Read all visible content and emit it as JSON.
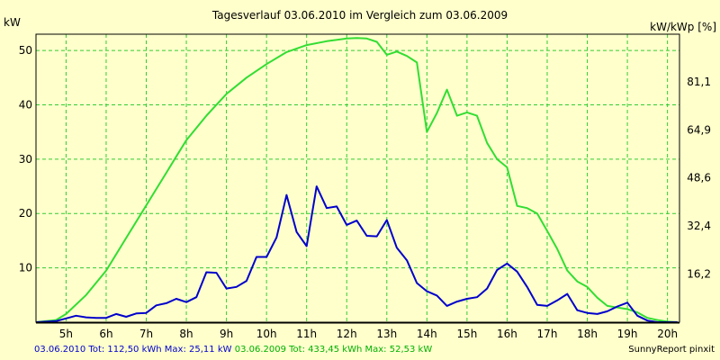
{
  "chart_data": {
    "type": "line",
    "title": "Tagesverlauf 03.06.2010 im Vergleich zum 03.06.2009",
    "ylabel_left": "kW",
    "ylabel_right": "kW/kWp [%]",
    "xlim": [
      4.25,
      20.3
    ],
    "ylim": [
      0,
      53
    ],
    "grid": true,
    "x_ticks": [
      5,
      6,
      7,
      8,
      9,
      10,
      11,
      12,
      13,
      14,
      15,
      16,
      17,
      18,
      19,
      20
    ],
    "x_tick_labels": [
      "5h",
      "6h",
      "7h",
      "8h",
      "9h",
      "10h",
      "11h",
      "12h",
      "13h",
      "14h",
      "15h",
      "16h",
      "17h",
      "18h",
      "19h",
      "20h"
    ],
    "y_ticks_left": [
      10,
      20,
      30,
      40,
      50
    ],
    "y_tick_labels_left": [
      "10",
      "20",
      "30",
      "40",
      "50"
    ],
    "y_ticks_right": [
      8.85,
      17.7,
      26.55,
      35.4,
      44.25
    ],
    "y_tick_labels_right": [
      "16,2",
      "32,4",
      "48,6",
      "64,9",
      "81,1"
    ],
    "series": [
      {
        "name": "03.06.2010",
        "color": "#0000CC",
        "x": [
          4.25,
          4.75,
          5.0,
          5.25,
          5.5,
          5.75,
          6.0,
          6.25,
          6.5,
          6.75,
          7.0,
          7.25,
          7.5,
          7.75,
          8.0,
          8.25,
          8.5,
          8.75,
          9.0,
          9.25,
          9.5,
          9.75,
          10.0,
          10.25,
          10.5,
          10.75,
          11.0,
          11.25,
          11.5,
          11.75,
          12.0,
          12.25,
          12.5,
          12.75,
          13.0,
          13.25,
          13.5,
          13.75,
          14.0,
          14.25,
          14.5,
          14.75,
          15.0,
          15.25,
          15.5,
          15.75,
          16.0,
          16.25,
          16.5,
          16.75,
          17.0,
          17.25,
          17.5,
          17.75,
          18.0,
          18.25,
          18.5,
          18.75,
          19.0,
          19.25,
          19.5,
          19.75,
          20.0,
          20.25
        ],
        "y": [
          0.0,
          0.2,
          0.7,
          1.2,
          0.9,
          0.8,
          0.8,
          1.5,
          1.0,
          1.6,
          1.7,
          3.1,
          3.5,
          4.3,
          3.7,
          4.6,
          9.2,
          9.1,
          6.2,
          6.5,
          7.6,
          12.0,
          12.0,
          15.6,
          23.4,
          16.6,
          14.0,
          25.0,
          21.0,
          21.3,
          17.9,
          18.7,
          15.9,
          15.8,
          18.8,
          13.7,
          11.4,
          7.2,
          5.7,
          4.9,
          3.0,
          3.8,
          4.3,
          4.6,
          6.2,
          9.6,
          10.8,
          9.3,
          6.5,
          3.2,
          3.0,
          4.0,
          5.2,
          2.2,
          1.7,
          1.5,
          2.0,
          2.9,
          3.6,
          1.2,
          0.3,
          0.0,
          0.0,
          0.0
        ]
      },
      {
        "name": "03.06.2009",
        "color": "#33DD33",
        "x": [
          4.25,
          4.75,
          5.0,
          5.5,
          6.0,
          6.5,
          7.0,
          7.25,
          7.5,
          7.75,
          8.0,
          8.5,
          9.0,
          9.5,
          10.0,
          10.5,
          11.0,
          11.5,
          12.0,
          12.25,
          12.5,
          12.75,
          13.0,
          13.25,
          13.5,
          13.75,
          14.0,
          14.25,
          14.5,
          14.75,
          15.0,
          15.25,
          15.5,
          15.75,
          16.0,
          16.25,
          16.5,
          16.75,
          17.0,
          17.25,
          17.5,
          17.75,
          18.0,
          18.25,
          18.5,
          18.75,
          19.0,
          19.25,
          19.5,
          19.75,
          20.0,
          20.25
        ],
        "y": [
          0.0,
          0.4,
          1.5,
          5.0,
          9.5,
          15.5,
          21.5,
          24.5,
          27.5,
          30.5,
          33.5,
          38.0,
          42.0,
          45.0,
          47.5,
          49.7,
          51.0,
          51.7,
          52.2,
          52.3,
          52.2,
          51.6,
          49.2,
          49.8,
          49.0,
          47.8,
          35.0,
          38.5,
          42.8,
          38.0,
          38.6,
          38.0,
          33.0,
          30.0,
          28.5,
          21.4,
          21.0,
          20.0,
          16.8,
          13.5,
          9.5,
          7.5,
          6.5,
          4.5,
          3.0,
          2.7,
          2.4,
          1.8,
          0.8,
          0.4,
          0.1,
          0.0
        ]
      }
    ]
  },
  "footer": {
    "legend_2010": "03.06.2010 Tot: 112,50 kWh Max: 25,11 kW",
    "legend_2009": "03.06.2009 Tot: 433,45 kWh Max: 52,53 kW",
    "credit": "SunnyReport pinxit"
  }
}
